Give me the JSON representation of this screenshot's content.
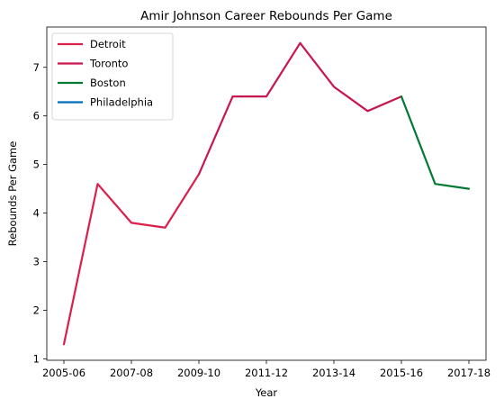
{
  "chart_data": {
    "type": "line",
    "title": "Amir Johnson Career Rebounds Per Game",
    "xlabel": "Year",
    "ylabel": "Rebounds Per Game",
    "x_tick_labels": [
      "2005-06",
      "2007-08",
      "2009-10",
      "2011-12",
      "2013-14",
      "2015-16",
      "2017-18"
    ],
    "seasons": [
      "2005-06",
      "2006-07",
      "2007-08",
      "2008-09",
      "2009-10",
      "2010-11",
      "2011-12",
      "2012-13",
      "2013-14",
      "2014-15",
      "2015-16",
      "2016-17",
      "2017-18"
    ],
    "y_ticks": [
      1,
      2,
      3,
      4,
      5,
      6,
      7
    ],
    "ylim": [
      0.97,
      7.83
    ],
    "grid": false,
    "legend_position": "top-left",
    "series": [
      {
        "name": "Detroit",
        "color": "#dc1e4b",
        "x": [
          "2005-06",
          "2006-07",
          "2007-08",
          "2008-09",
          "2009-10"
        ],
        "values": [
          1.3,
          4.6,
          3.8,
          3.7,
          4.8
        ]
      },
      {
        "name": "Toronto",
        "color": "#c8174f",
        "x": [
          "2009-10",
          "2010-11",
          "2011-12",
          "2012-13",
          "2013-14",
          "2014-15",
          "2015-16"
        ],
        "values": [
          4.8,
          6.4,
          6.4,
          7.5,
          6.6,
          6.1,
          6.4
        ]
      },
      {
        "name": "Boston",
        "color": "#007a33",
        "x": [
          "2015-16",
          "2016-17",
          "2017-18"
        ],
        "values": [
          6.4,
          4.6,
          4.5
        ]
      },
      {
        "name": "Philadelphia",
        "color": "#006bb6",
        "x": [],
        "values": []
      }
    ]
  }
}
